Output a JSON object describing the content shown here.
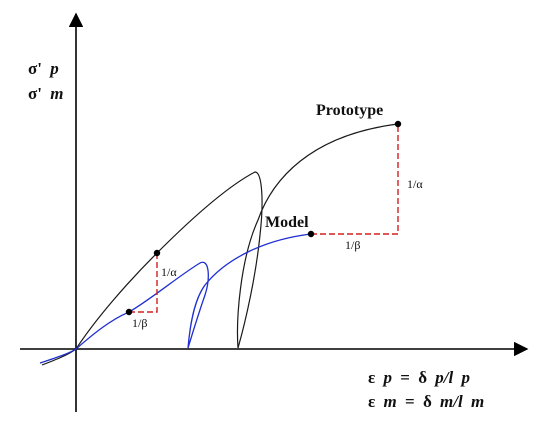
{
  "y_axis_label": {
    "line1": {
      "sym": "σ'",
      "sub": "p"
    },
    "line2": {
      "sym": "σ'",
      "sub": "m"
    }
  },
  "x_axis_label": {
    "line1": {
      "lhs_sym": "ε",
      "lhs_sub": "p",
      "eq": "=",
      "rhs_a": "δ",
      "rhs_b": "p/l",
      "rhs_c": "p"
    },
    "line2": {
      "lhs_sym": "ε",
      "lhs_sub": "m",
      "eq": "=",
      "rhs_a": "δ",
      "rhs_b": "m/l",
      "rhs_c": "m"
    }
  },
  "curve_labels": {
    "prototype": "Prototype",
    "model": "Model"
  },
  "ratio_labels": {
    "upper_alpha": "1/α",
    "upper_beta": "1/β",
    "lower_alpha": "1/α",
    "lower_beta": "1/β"
  },
  "colors": {
    "axes": "#000000",
    "prototype_curve": "#1a1a1a",
    "model_curve": "#1f2fd0",
    "ratio_lines": "#d42020",
    "points": "#000000"
  }
}
